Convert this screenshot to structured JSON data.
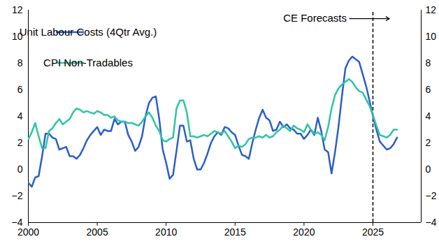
{
  "chart_data": {
    "type": "line",
    "legend": "top-left",
    "grid": false,
    "x": [
      2000,
      2000.25,
      2000.5,
      2000.75,
      2001,
      2001.25,
      2001.5,
      2001.75,
      2002,
      2002.25,
      2002.5,
      2002.75,
      2003,
      2003.25,
      2003.5,
      2003.75,
      2004,
      2004.25,
      2004.5,
      2004.75,
      2005,
      2005.25,
      2005.5,
      2005.75,
      2006,
      2006.25,
      2006.5,
      2006.75,
      2007,
      2007.25,
      2007.5,
      2007.75,
      2008,
      2008.25,
      2008.5,
      2008.75,
      2009,
      2009.25,
      2009.5,
      2009.75,
      2010,
      2010.25,
      2010.5,
      2010.75,
      2011,
      2011.25,
      2011.5,
      2011.75,
      2012,
      2012.25,
      2012.5,
      2012.75,
      2013,
      2013.25,
      2013.5,
      2013.75,
      2014,
      2014.25,
      2014.5,
      2014.75,
      2015,
      2015.25,
      2015.5,
      2015.75,
      2016,
      2016.25,
      2016.5,
      2016.75,
      2017,
      2017.25,
      2017.5,
      2017.75,
      2018,
      2018.25,
      2018.5,
      2018.75,
      2019,
      2019.25,
      2019.5,
      2019.75,
      2020,
      2020.25,
      2020.5,
      2020.75,
      2021,
      2021.25,
      2021.5,
      2021.75,
      2022,
      2022.25,
      2022.5,
      2022.75,
      2023,
      2023.25,
      2023.5,
      2023.75,
      2024,
      2024.25,
      2024.5,
      2024.75,
      2025,
      2025.25,
      2025.5,
      2025.75,
      2026,
      2026.25,
      2026.5,
      2026.75
    ],
    "series": [
      {
        "name": "Unit Labour Costs (4Qtr Avg.)",
        "color": "#2b5fc7",
        "values": [
          -1.0,
          -1.3,
          -0.6,
          -0.5,
          1.0,
          2.7,
          2.7,
          2.4,
          2.3,
          1.5,
          1.6,
          1.7,
          1.0,
          1.0,
          0.8,
          1.1,
          1.6,
          2.2,
          2.6,
          2.9,
          3.2,
          2.6,
          3.0,
          2.9,
          2.9,
          3.8,
          3.4,
          3.6,
          3.6,
          2.6,
          2.1,
          1.4,
          1.7,
          2.5,
          4.0,
          5.0,
          5.4,
          5.5,
          3.8,
          1.5,
          0.5,
          -0.7,
          -0.4,
          1.4,
          3.3,
          3.3,
          2.1,
          2.2,
          0.8,
          0.0,
          0.0,
          0.5,
          1.2,
          2.0,
          2.5,
          2.8,
          2.6,
          3.2,
          3.1,
          2.8,
          2.6,
          1.8,
          1.1,
          1.0,
          0.8,
          2.0,
          3.0,
          3.9,
          4.5,
          3.9,
          3.7,
          2.9,
          3.0,
          3.6,
          3.2,
          3.4,
          3.1,
          3.0,
          2.7,
          2.7,
          2.3,
          2.6,
          3.0,
          2.6,
          3.9,
          2.9,
          1.5,
          1.3,
          -0.3,
          1.3,
          3.2,
          5.5,
          7.6,
          8.2,
          8.5,
          8.3,
          8.1,
          7.2,
          6.3,
          5.2,
          4.0,
          3.0,
          2.1,
          1.8,
          1.5,
          1.6,
          1.9,
          2.4
        ]
      },
      {
        "name": "CPI Non-Tradables",
        "color": "#2ec4a4",
        "values": [
          2.3,
          2.8,
          3.5,
          2.5,
          1.6,
          1.6,
          2.9,
          3.1,
          3.5,
          3.8,
          3.4,
          3.6,
          3.8,
          4.3,
          4.6,
          4.5,
          4.3,
          4.4,
          4.3,
          4.2,
          4.4,
          4.3,
          4.1,
          4.1,
          3.9,
          4.0,
          3.7,
          3.6,
          3.6,
          3.5,
          3.5,
          3.4,
          3.3,
          3.6,
          4.0,
          4.3,
          3.9,
          3.3,
          2.9,
          2.2,
          2.1,
          2.3,
          2.4,
          4.6,
          5.2,
          5.2,
          4.3,
          2.5,
          2.5,
          2.4,
          2.5,
          2.6,
          2.5,
          2.7,
          2.9,
          2.8,
          2.7,
          2.9,
          2.5,
          2.1,
          1.6,
          1.8,
          1.7,
          1.9,
          2.3,
          2.4,
          2.4,
          2.5,
          2.4,
          2.6,
          2.4,
          2.5,
          2.8,
          3.0,
          3.3,
          3.1,
          2.9,
          3.3,
          3.1,
          3.0,
          2.8,
          3.4,
          3.0,
          2.7,
          2.8,
          2.6,
          2.2,
          3.2,
          4.6,
          5.6,
          6.1,
          6.4,
          6.6,
          6.8,
          6.6,
          6.2,
          5.9,
          5.8,
          5.3,
          4.8,
          4.1,
          3.3,
          2.6,
          2.5,
          2.4,
          2.6,
          3.0,
          3.0
        ]
      }
    ],
    "xlim": [
      2000,
      2028.5
    ],
    "xticks": [
      2000,
      2005,
      2010,
      2015,
      2020,
      2025
    ],
    "ylim": [
      -4,
      12
    ],
    "yticks": [
      -4,
      -2,
      0,
      2,
      4,
      6,
      8,
      10,
      12
    ],
    "annotations": [
      {
        "text": "CE Forecasts",
        "x": 2025,
        "line_style": "dashed"
      }
    ]
  }
}
